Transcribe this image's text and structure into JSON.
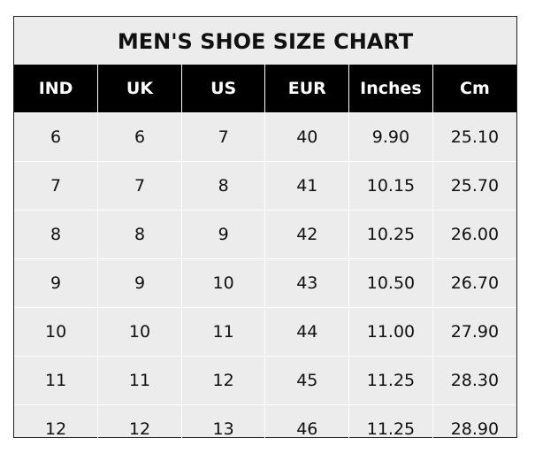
{
  "title": "MEN'S SHOE SIZE CHART",
  "headers": [
    "IND",
    "UK",
    "US",
    "EUR",
    "Inches",
    "Cm"
  ],
  "rows": [
    [
      "6",
      "6",
      "7",
      "40",
      "9.90",
      "25.10"
    ],
    [
      "7",
      "7",
      "8",
      "41",
      "10.15",
      "25.70"
    ],
    [
      "8",
      "8",
      "9",
      "42",
      "10.25",
      "26.00"
    ],
    [
      "9",
      "9",
      "10",
      "43",
      "10.50",
      "26.70"
    ],
    [
      "10",
      "10",
      "11",
      "44",
      "11.00",
      "27.90"
    ],
    [
      "11",
      "11",
      "12",
      "45",
      "11.25",
      "28.30"
    ],
    [
      "12",
      "12",
      "13",
      "46",
      "11.25",
      "28.90"
    ]
  ],
  "colors": {
    "header_bg": "#000000",
    "header_text": "#ffffff",
    "body_bg": "#ececec",
    "grid": "#ffffff"
  }
}
